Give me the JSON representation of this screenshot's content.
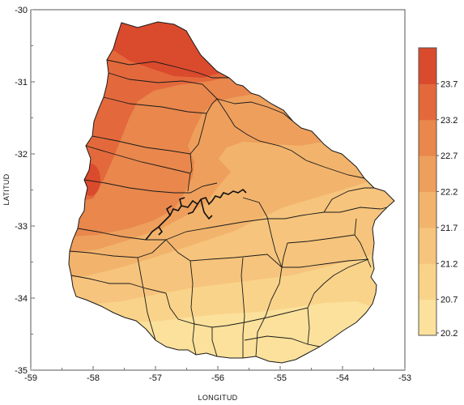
{
  "chart_data": {
    "type": "heatmap",
    "title": "",
    "xlabel": "LONGITUD",
    "ylabel": "LATITUD",
    "xlim": [
      -59,
      -53
    ],
    "ylim": [
      -35,
      -30
    ],
    "x_ticks": [
      "-59",
      "-58",
      "-57",
      "-56",
      "-55",
      "-54",
      "-53"
    ],
    "y_ticks": [
      "-30",
      "-31",
      "-32",
      "-33",
      "-34",
      "-35"
    ],
    "colorbar": {
      "labels": [
        "23.7",
        "23.2",
        "22.7",
        "22.2",
        "21.7",
        "21.2",
        "20.7",
        "20.2"
      ],
      "levels": [
        {
          "min": 20.2,
          "max": 20.7,
          "color": "#fbe19b"
        },
        {
          "min": 20.7,
          "max": 21.2,
          "color": "#f9d38a"
        },
        {
          "min": 21.2,
          "max": 21.7,
          "color": "#f6c47c"
        },
        {
          "min": 21.7,
          "max": 22.2,
          "color": "#f2b46c"
        },
        {
          "min": 22.2,
          "max": 22.7,
          "color": "#ee9f5c"
        },
        {
          "min": 22.7,
          "max": 23.2,
          "color": "#e9874c"
        },
        {
          "min": 23.2,
          "max": 23.7,
          "color": "#e3693c"
        },
        {
          "min": 23.7,
          "max": 24.2,
          "color": "#da4a2c"
        }
      ]
    },
    "grid": false,
    "legend": "right"
  }
}
